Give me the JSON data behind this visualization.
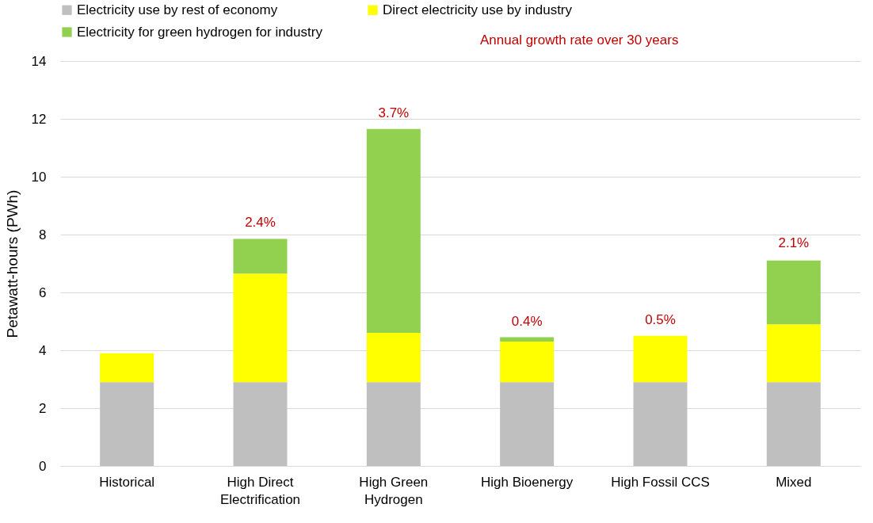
{
  "chart_data": {
    "type": "bar",
    "stacked": true,
    "ylabel": "Petawatt-hours (PWh)",
    "categories": [
      "Historical",
      "High Direct Electrification",
      "High Green Hydrogen",
      "High Bioenergy",
      "High Fossil CCS",
      "Mixed"
    ],
    "series": [
      {
        "name": "Electricity use by rest of economy",
        "color": "#bfbfbf",
        "values": [
          2.9,
          2.9,
          2.9,
          2.9,
          2.9,
          2.9
        ]
      },
      {
        "name": "Direct electricity use by industry",
        "color": "#ffff00",
        "values": [
          1.0,
          3.75,
          1.7,
          1.4,
          1.6,
          2.0
        ]
      },
      {
        "name": "Electricity for green hydrogen for industry",
        "color": "#92d050",
        "values": [
          null,
          1.2,
          7.05,
          0.15,
          null,
          2.2
        ]
      }
    ],
    "ylim": [
      0,
      14
    ],
    "yticks": [
      0,
      2,
      4,
      6,
      8,
      10,
      12,
      14
    ],
    "grid": "y",
    "legend": "top",
    "annotations": [
      "Annual growth rate over 30 years",
      {
        "text": "2.4%",
        "x": "High Direct Electrification",
        "y": 7.85
      },
      {
        "text": "3.7%",
        "x": "High Green Hydrogen",
        "y": 11.65
      },
      {
        "text": "0.4%",
        "x": "High Bioenergy",
        "y": 4.45
      },
      {
        "text": "0.5%",
        "x": "High Fossil CCS",
        "y": 4.5
      },
      {
        "text": "2.1%",
        "x": "Mixed",
        "y": 7.15
      }
    ]
  }
}
